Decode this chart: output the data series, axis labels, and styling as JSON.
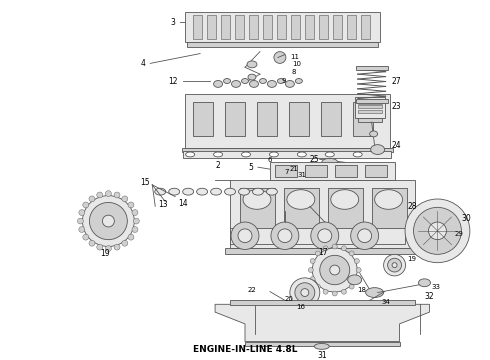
{
  "title": "ENGINE-IN-LINE 4.8L",
  "title_fontsize": 6.5,
  "title_fontweight": "bold",
  "background_color": "#ffffff",
  "line_color": "#555555",
  "light_fill": "#e8e8e8",
  "mid_fill": "#d0d0d0",
  "dark_fill": "#b8b8b8",
  "figsize": [
    4.9,
    3.6
  ],
  "dpi": 100
}
